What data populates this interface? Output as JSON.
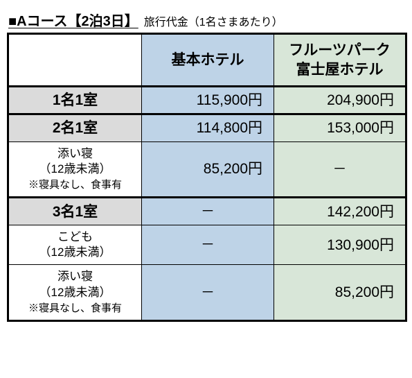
{
  "title": {
    "main": "■Aコース【2泊3日】",
    "sub": "旅行代金（1名さまあたり）"
  },
  "table": {
    "headers": {
      "blank": "",
      "col_a": "基本ホテル",
      "col_b_line1": "フルーツパーク",
      "col_b_line2": "富士屋ホテル"
    },
    "rows": [
      {
        "kind": "room",
        "label": "1名1室",
        "a": "115,900円",
        "b": "204,900円"
      },
      {
        "kind": "room",
        "label": "2名1室",
        "a": "114,800円",
        "b": "153,000円",
        "sep": true
      },
      {
        "kind": "sub",
        "label_lines": [
          "添い寝",
          "（12歳未満）"
        ],
        "note": "※寝具なし、食事有",
        "a": "85,200円",
        "b": "－"
      },
      {
        "kind": "room",
        "label": "3名1室",
        "a": "－",
        "b": "142,200円",
        "sep": true
      },
      {
        "kind": "sub",
        "label_lines": [
          "こども",
          "（12歳未満）"
        ],
        "a": "－",
        "b": "130,900円"
      },
      {
        "kind": "sub",
        "label_lines": [
          "添い寝",
          "（12歳未満）"
        ],
        "note": "※寝具なし、食事有",
        "a": "－",
        "b": "85,200円"
      }
    ],
    "header_bg_a": "#bed3e7",
    "header_bg_b": "#d8e6d8",
    "room_label_bg": "#dbdbdb",
    "border_color": "#000000"
  }
}
